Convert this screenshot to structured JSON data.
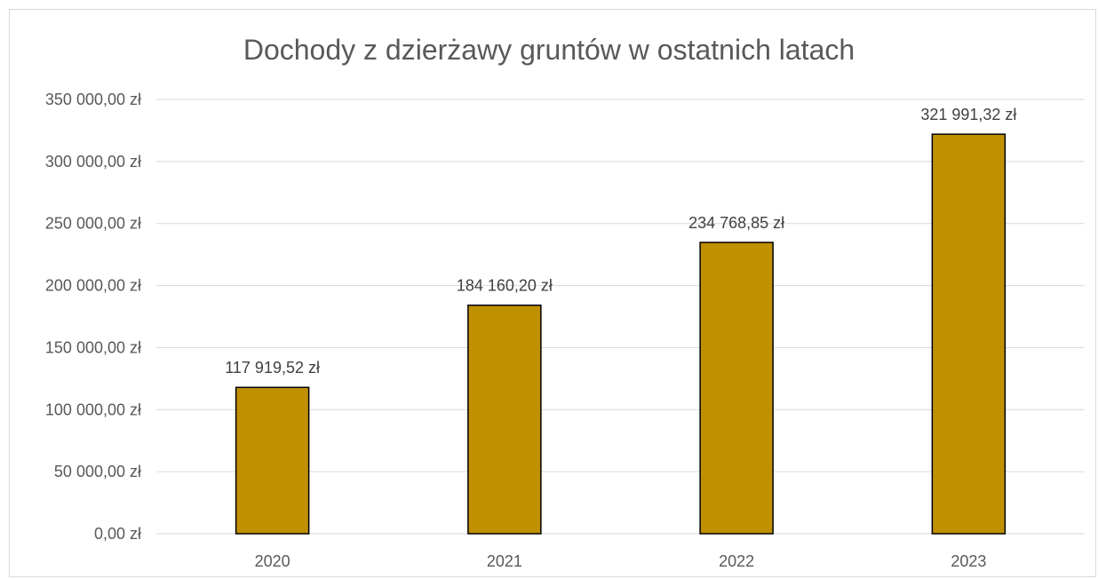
{
  "chart_data": {
    "type": "bar",
    "title": "Dochody z dzierżawy gruntów w ostatnich latach",
    "xlabel": "",
    "ylabel": "",
    "categories": [
      "2020",
      "2021",
      "2022",
      "2023"
    ],
    "values": [
      117919.52,
      184160.2,
      234768.85,
      321991.32
    ],
    "value_labels": [
      "117 919,52 zł",
      "184 160,20 zł",
      "234 768,85 zł",
      "321 991,32 zł"
    ],
    "ylim": [
      0,
      350000
    ],
    "y_ticks": [
      0,
      50000,
      100000,
      150000,
      200000,
      250000,
      300000,
      350000
    ],
    "y_tick_labels": [
      "0,00 zł",
      "50 000,00 zł",
      "100 000,00 zł",
      "150 000,00 zł",
      "200 000,00 zł",
      "250 000,00 zł",
      "300 000,00 zł",
      "350 000,00 zł"
    ],
    "grid": true,
    "legend": "none",
    "bar_color": "#BF9000",
    "bar_border_color": "#000000",
    "gridline_color": "#d9d9d9"
  }
}
